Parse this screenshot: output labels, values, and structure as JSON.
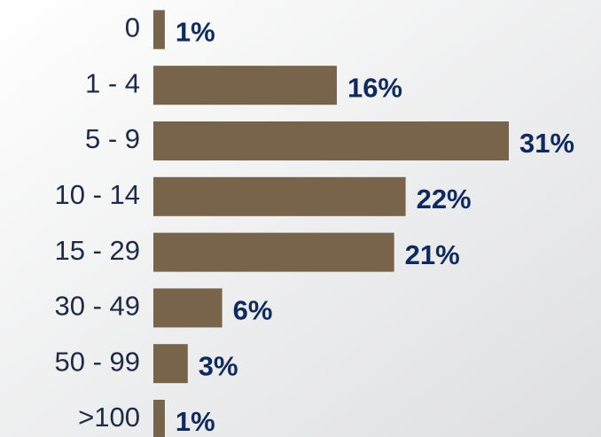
{
  "chart_data": {
    "type": "bar",
    "orientation": "horizontal",
    "categories": [
      "0",
      "1 - 4",
      "5 - 9",
      "10 - 14",
      "15 - 29",
      "30 - 49",
      "50 - 99",
      ">100"
    ],
    "values": [
      1,
      16,
      31,
      22,
      21,
      6,
      3,
      1
    ],
    "value_labels": [
      "1%",
      "16%",
      "31%",
      "22%",
      "21%",
      "6%",
      "3%",
      "1%"
    ],
    "color": "#77644a"
  }
}
